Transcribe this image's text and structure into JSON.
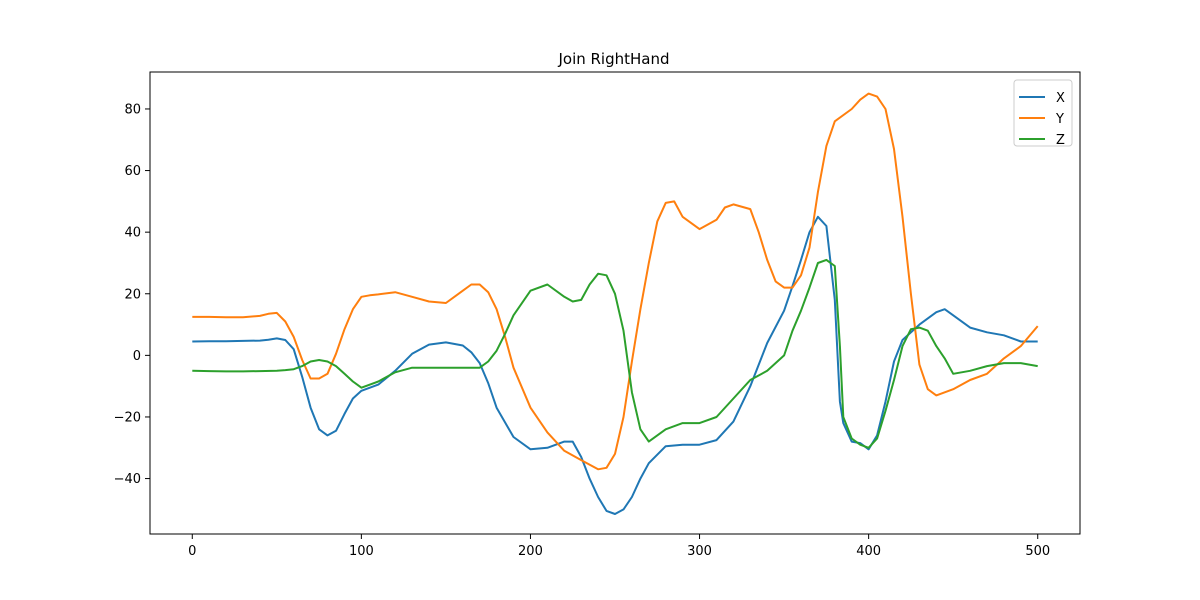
{
  "chart_data": {
    "type": "line",
    "title": "Join RightHand",
    "xlabel": "",
    "ylabel": "",
    "xlim": [
      -25,
      525
    ],
    "ylim": [
      -58,
      92
    ],
    "xticks": [
      0,
      100,
      200,
      300,
      400,
      500
    ],
    "yticks": [
      -40,
      -20,
      0,
      20,
      40,
      60,
      80
    ],
    "legend": "top-right",
    "grid": false,
    "series": [
      {
        "name": "X",
        "color": "#1f77b4",
        "x": [
          0,
          10,
          20,
          30,
          40,
          45,
          50,
          55,
          60,
          65,
          70,
          75,
          80,
          85,
          90,
          95,
          100,
          110,
          120,
          130,
          140,
          150,
          160,
          165,
          170,
          175,
          180,
          190,
          200,
          210,
          220,
          225,
          230,
          235,
          240,
          245,
          250,
          255,
          260,
          265,
          270,
          280,
          290,
          300,
          310,
          320,
          330,
          340,
          350,
          355,
          360,
          365,
          370,
          375,
          380,
          383,
          385,
          390,
          395,
          400,
          405,
          410,
          415,
          420,
          430,
          440,
          445,
          450,
          460,
          470,
          480,
          490,
          500
        ],
        "y": [
          4.5,
          4.6,
          4.6,
          4.7,
          4.8,
          5.1,
          5.5,
          5.0,
          2.0,
          -7.0,
          -17.0,
          -24.0,
          -26.0,
          -24.5,
          -19.0,
          -14.0,
          -11.5,
          -9.5,
          -5.0,
          0.5,
          3.5,
          4.2,
          3.2,
          1.0,
          -2.5,
          -9.0,
          -17.0,
          -26.5,
          -30.5,
          -30.0,
          -28.0,
          -28.0,
          -33.0,
          -40.0,
          -46.0,
          -50.5,
          -51.5,
          -50.0,
          -46.0,
          -40.0,
          -35.0,
          -29.5,
          -29.0,
          -29.0,
          -27.5,
          -21.5,
          -10.0,
          4.0,
          14.5,
          22.5,
          31.0,
          40.0,
          45.0,
          42.0,
          18.0,
          -15.0,
          -22.0,
          -28.0,
          -28.5,
          -30.5,
          -26.0,
          -15.0,
          -2.0,
          5.0,
          10.0,
          14.0,
          15.0,
          13.0,
          9.0,
          7.5,
          6.5,
          4.5,
          4.5
        ]
      },
      {
        "name": "Y",
        "color": "#ff7f0e",
        "x": [
          0,
          10,
          20,
          30,
          40,
          45,
          50,
          55,
          60,
          65,
          70,
          75,
          80,
          85,
          90,
          95,
          100,
          105,
          110,
          120,
          130,
          140,
          150,
          155,
          160,
          165,
          170,
          175,
          180,
          185,
          190,
          200,
          210,
          220,
          230,
          240,
          245,
          250,
          255,
          260,
          265,
          270,
          275,
          280,
          285,
          290,
          300,
          310,
          315,
          320,
          330,
          335,
          340,
          345,
          350,
          355,
          360,
          365,
          370,
          375,
          380,
          390,
          395,
          400,
          405,
          410,
          415,
          420,
          425,
          430,
          435,
          440,
          450,
          460,
          470,
          480,
          490,
          500
        ],
        "y": [
          12.5,
          12.5,
          12.4,
          12.4,
          12.8,
          13.5,
          13.8,
          11.0,
          6.0,
          -1.5,
          -7.5,
          -7.5,
          -6.0,
          0.5,
          8.5,
          15.0,
          19.0,
          19.5,
          19.8,
          20.5,
          19.0,
          17.5,
          17.0,
          19.0,
          21.0,
          23.0,
          23.0,
          20.5,
          15.0,
          6.0,
          -4.0,
          -17.0,
          -25.0,
          -31.0,
          -34.0,
          -37.0,
          -36.5,
          -32.0,
          -20.0,
          -2.0,
          15.0,
          30.0,
          43.5,
          49.5,
          50.0,
          45.0,
          41.0,
          44.0,
          48.0,
          49.0,
          47.5,
          40.0,
          31.0,
          24.0,
          22.0,
          22.0,
          26.0,
          35.0,
          53.0,
          68.0,
          76.0,
          80.0,
          83.0,
          85.0,
          84.0,
          80.0,
          67.0,
          45.0,
          20.0,
          -3.0,
          -11.0,
          -13.0,
          -11.0,
          -8.0,
          -6.0,
          -1.0,
          3.0,
          9.5
        ]
      },
      {
        "name": "Z",
        "color": "#2ca02c",
        "x": [
          0,
          10,
          20,
          30,
          40,
          50,
          55,
          60,
          65,
          70,
          75,
          80,
          85,
          90,
          95,
          100,
          110,
          120,
          130,
          140,
          150,
          160,
          170,
          175,
          180,
          185,
          190,
          200,
          210,
          220,
          225,
          230,
          235,
          240,
          245,
          250,
          255,
          260,
          265,
          270,
          280,
          290,
          300,
          310,
          320,
          330,
          340,
          350,
          355,
          360,
          365,
          370,
          375,
          380,
          383,
          385,
          390,
          395,
          400,
          405,
          410,
          415,
          420,
          425,
          430,
          435,
          440,
          445,
          450,
          460,
          470,
          480,
          490,
          500
        ],
        "y": [
          -5.0,
          -5.1,
          -5.2,
          -5.2,
          -5.1,
          -5.0,
          -4.8,
          -4.5,
          -3.5,
          -2.0,
          -1.5,
          -2.0,
          -3.5,
          -6.0,
          -8.5,
          -10.5,
          -8.5,
          -5.5,
          -4.0,
          -4.0,
          -4.0,
          -4.0,
          -4.0,
          -2.0,
          1.5,
          7.0,
          13.0,
          21.0,
          23.0,
          19.0,
          17.5,
          18.0,
          23.0,
          26.5,
          26.0,
          20.0,
          8.0,
          -12.0,
          -24.0,
          -28.0,
          -24.0,
          -22.0,
          -22.0,
          -20.0,
          -14.0,
          -8.0,
          -5.0,
          0.0,
          8.0,
          14.5,
          22.0,
          30.0,
          31.0,
          29.0,
          3.0,
          -20.0,
          -27.0,
          -29.0,
          -30.0,
          -27.0,
          -18.0,
          -8.0,
          3.0,
          8.5,
          9.0,
          8.0,
          3.0,
          -1.0,
          -6.0,
          -5.0,
          -3.5,
          -2.5,
          -2.5,
          -3.5
        ]
      }
    ]
  }
}
